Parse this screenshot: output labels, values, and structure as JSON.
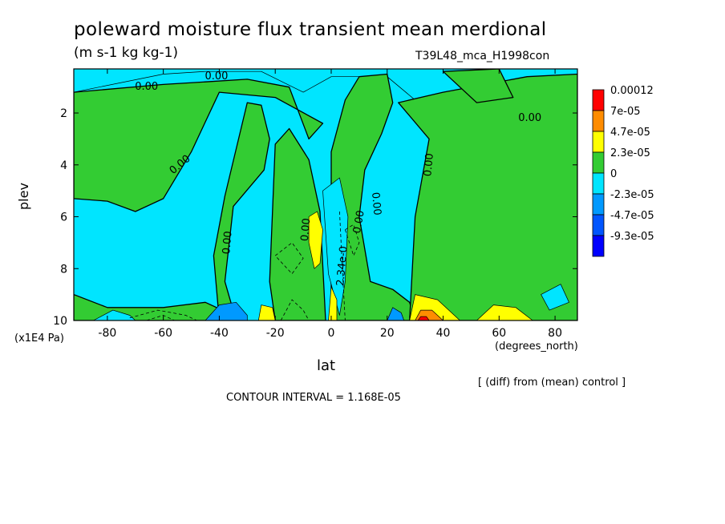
{
  "chart_data": {
    "type": "heatmap",
    "title": "poleward moisture flux transient mean merdional",
    "units": "(m s-1 kg kg-1)",
    "dataset_label": "T39L48_mca_H1998con",
    "xlabel": "lat",
    "xunits": "(degrees_north)",
    "ylabel": "plev",
    "yunits_factor": "(x1E4 Pa)",
    "note": "[ (diff) from (mean) control ]",
    "contour_interval_label": "CONTOUR INTERVAL = 1.168E-05",
    "xlim": [
      -92,
      88
    ],
    "ylim": [
      10,
      0.3
    ],
    "x_ticks": [
      -80,
      -60,
      -40,
      -20,
      0,
      20,
      40,
      60,
      80
    ],
    "y_ticks": [
      2,
      4,
      6,
      8,
      10
    ],
    "legend": {
      "position": "right",
      "labels": [
        "0.00012",
        "7e-05",
        "4.7e-05",
        "2.3e-05",
        "0",
        "-2.3e-05",
        "-4.7e-05",
        "-9.3e-05"
      ],
      "colors": [
        "#ff0000",
        "#ff8c00",
        "#ffff00",
        "#33cc33",
        "#00e5ff",
        "#0099ff",
        "#0055ff",
        "#0000ff"
      ]
    },
    "contour_labels": [
      {
        "text": "0.00",
        "x": -66,
        "y": 1.0,
        "angle": 0
      },
      {
        "text": "0.00",
        "x": -41,
        "y": 0.6,
        "angle": 0
      },
      {
        "text": "0.00",
        "x": 71,
        "y": 2.2,
        "angle": 0
      },
      {
        "text": "0.00",
        "x": -54,
        "y": 4.0,
        "angle": -40
      },
      {
        "text": "0.00",
        "x": -37,
        "y": 7.0,
        "angle": -85
      },
      {
        "text": "0.00",
        "x": -9,
        "y": 6.5,
        "angle": -85
      },
      {
        "text": "0.00",
        "x": 10,
        "y": 6.2,
        "angle": -80
      },
      {
        "text": "0.00",
        "x": 16,
        "y": 5.5,
        "angle": 85
      },
      {
        "text": "0.00",
        "x": 35,
        "y": 4.0,
        "angle": -85
      },
      {
        "text": "2.34e-0",
        "x": 4,
        "y": 7.9,
        "angle": -85
      }
    ],
    "fields": [
      {
        "level": "negative",
        "polygon": [
          [
            -92,
            0.3
          ],
          [
            88,
            0.3
          ],
          [
            88,
            2.8
          ],
          [
            55,
            1.8
          ],
          [
            30,
            1.5
          ],
          [
            20,
            0.6
          ],
          [
            0,
            0.6
          ],
          [
            -10,
            1.2
          ],
          [
            -25,
            0.4
          ],
          [
            -45,
            0.4
          ],
          [
            -60,
            0.5
          ],
          [
            -92,
            1.2
          ]
        ]
      },
      {
        "level": "zero",
        "polygon": [
          [
            -92,
            1.2
          ],
          [
            -60,
            0.9
          ],
          [
            -45,
            0.8
          ],
          [
            -30,
            0.7
          ],
          [
            -15,
            1.0
          ],
          [
            -8,
            3.0
          ],
          [
            -3,
            2.4
          ],
          [
            -20,
            1.4
          ],
          [
            -40,
            1.2
          ],
          [
            -50,
            3.5
          ],
          [
            -60,
            5.3
          ],
          [
            -70,
            5.8
          ],
          [
            -80,
            5.4
          ],
          [
            -92,
            5.3
          ]
        ]
      },
      {
        "level": "zero",
        "polygon": [
          [
            -30,
            1.6
          ],
          [
            -25,
            1.7
          ],
          [
            -22,
            3.0
          ],
          [
            -24,
            4.2
          ],
          [
            -35,
            5.6
          ],
          [
            -38,
            8.5
          ],
          [
            -34,
            10
          ],
          [
            -40,
            10
          ],
          [
            -42,
            7.5
          ],
          [
            -38,
            5.2
          ]
        ]
      },
      {
        "level": "zero",
        "polygon": [
          [
            -20,
            3.2
          ],
          [
            -15,
            2.6
          ],
          [
            -8,
            3.8
          ],
          [
            -4,
            5.8
          ],
          [
            -2,
            10
          ],
          [
            -20,
            10
          ],
          [
            -22,
            8.5
          ]
        ]
      },
      {
        "level": "zero",
        "polygon": [
          [
            -92,
            9.0
          ],
          [
            -80,
            9.5
          ],
          [
            -60,
            9.5
          ],
          [
            -45,
            9.3
          ],
          [
            -35,
            9.8
          ],
          [
            -35,
            10
          ],
          [
            -92,
            10
          ]
        ]
      },
      {
        "level": "zero",
        "polygon": [
          [
            0,
            3.5
          ],
          [
            5,
            1.5
          ],
          [
            10,
            0.6
          ],
          [
            20,
            0.5
          ],
          [
            22,
            1.6
          ],
          [
            18,
            2.8
          ],
          [
            12,
            4.2
          ],
          [
            10,
            6.0
          ],
          [
            14,
            8.5
          ],
          [
            22,
            8.8
          ],
          [
            28,
            9.3
          ],
          [
            30,
            10
          ],
          [
            0,
            10
          ]
        ]
      },
      {
        "level": "zero",
        "polygon": [
          [
            24,
            1.6
          ],
          [
            40,
            1.2
          ],
          [
            55,
            0.9
          ],
          [
            70,
            0.6
          ],
          [
            88,
            0.5
          ],
          [
            88,
            10
          ],
          [
            28,
            10
          ],
          [
            30,
            6.0
          ],
          [
            35,
            3.0
          ]
        ]
      },
      {
        "level": "zero",
        "polygon": [
          [
            40,
            0.4
          ],
          [
            60,
            0.3
          ],
          [
            65,
            1.4
          ],
          [
            52,
            1.6
          ]
        ]
      },
      {
        "level": "negative",
        "polygon": [
          [
            -3,
            5.0
          ],
          [
            3,
            4.5
          ],
          [
            6,
            6.0
          ],
          [
            5,
            8.5
          ],
          [
            3,
            9.8
          ],
          [
            -1,
            8.2
          ]
        ]
      },
      {
        "level": "negative",
        "polygon": [
          [
            75,
            9.0
          ],
          [
            82,
            8.6
          ],
          [
            85,
            9.3
          ],
          [
            78,
            9.6
          ]
        ]
      },
      {
        "level": "negative",
        "polygon": [
          [
            -85,
            10
          ],
          [
            -78,
            9.6
          ],
          [
            -72,
            9.8
          ],
          [
            -70,
            10
          ]
        ]
      },
      {
        "level": "negative2",
        "polygon": [
          [
            -45,
            10
          ],
          [
            -40,
            9.4
          ],
          [
            -34,
            9.3
          ],
          [
            -30,
            9.8
          ],
          [
            -30,
            10
          ]
        ]
      },
      {
        "level": "negative2",
        "polygon": [
          [
            20,
            10
          ],
          [
            22,
            9.5
          ],
          [
            25,
            9.7
          ],
          [
            26,
            10
          ]
        ]
      },
      {
        "level": "pos1",
        "polygon": [
          [
            -8,
            6.0
          ],
          [
            -5,
            5.8
          ],
          [
            -3,
            6.5
          ],
          [
            -4,
            7.8
          ],
          [
            -6,
            8.0
          ],
          [
            -8,
            7.0
          ]
        ]
      },
      {
        "level": "pos1",
        "polygon": [
          [
            -26,
            10
          ],
          [
            -25,
            9.4
          ],
          [
            -21,
            9.5
          ],
          [
            -20,
            10
          ]
        ]
      },
      {
        "level": "pos1",
        "polygon": [
          [
            -1,
            10
          ],
          [
            0,
            8.7
          ],
          [
            2,
            9.2
          ],
          [
            2,
            10
          ]
        ]
      },
      {
        "level": "pos1",
        "polygon": [
          [
            28,
            10
          ],
          [
            30,
            9.0
          ],
          [
            38,
            9.2
          ],
          [
            44,
            9.8
          ],
          [
            46,
            10
          ]
        ]
      },
      {
        "level": "pos1",
        "polygon": [
          [
            52,
            10
          ],
          [
            58,
            9.4
          ],
          [
            66,
            9.5
          ],
          [
            72,
            10
          ]
        ]
      },
      {
        "level": "pos2",
        "polygon": [
          [
            30,
            10
          ],
          [
            32,
            9.6
          ],
          [
            36,
            9.6
          ],
          [
            40,
            10
          ]
        ]
      },
      {
        "level": "pos3",
        "polygon": [
          [
            31,
            10
          ],
          [
            32,
            9.85
          ],
          [
            34,
            9.85
          ],
          [
            35,
            10
          ]
        ]
      }
    ],
    "dashed_contours": [
      [
        [
          -72,
          9.9
        ],
        [
          -62,
          9.6
        ],
        [
          -52,
          9.8
        ],
        [
          -48,
          10
        ]
      ],
      [
        [
          -66,
          10
        ],
        [
          -60,
          9.8
        ],
        [
          -56,
          10
        ]
      ],
      [
        [
          -20,
          7.5
        ],
        [
          -14,
          7.0
        ],
        [
          -10,
          7.6
        ],
        [
          -14,
          8.2
        ],
        [
          -20,
          7.5
        ]
      ],
      [
        [
          5,
          6.5
        ],
        [
          8,
          6.3
        ],
        [
          10,
          7.0
        ],
        [
          8,
          7.5
        ],
        [
          5,
          6.5
        ]
      ],
      [
        [
          -18,
          10
        ],
        [
          -14,
          9.2
        ],
        [
          -10,
          9.6
        ],
        [
          -8,
          10
        ]
      ],
      [
        [
          3,
          5.8
        ],
        [
          4,
          8
        ],
        [
          5,
          10
        ]
      ]
    ]
  }
}
